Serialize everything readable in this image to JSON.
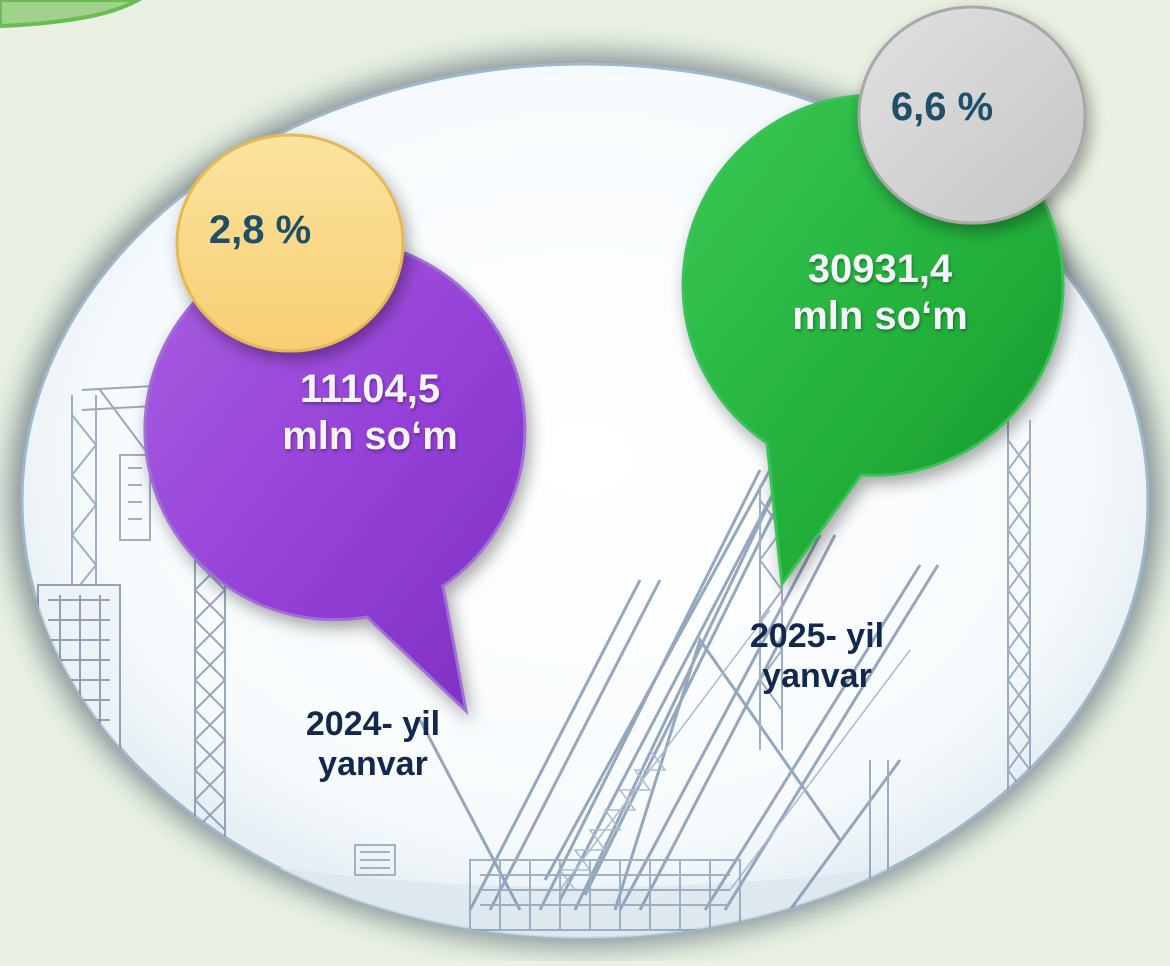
{
  "periods": [
    {
      "value_line1": "11104,5",
      "value_line2": "mln so‘m",
      "growth": "2,8 %",
      "year_line1": "2024- yil",
      "year_line2": "yanvar",
      "bubble_color": "#9a46d8",
      "badge_color": "#f8d680"
    },
    {
      "value_line1": "30931,4",
      "value_line2": "mln so‘m",
      "growth": "6,6 %",
      "year_line1": "2025- yil",
      "year_line2": "yanvar",
      "bubble_color": "#25b13d",
      "badge_color": "#d4d4d4"
    }
  ],
  "background_icon": "construction-cranes-illustration"
}
